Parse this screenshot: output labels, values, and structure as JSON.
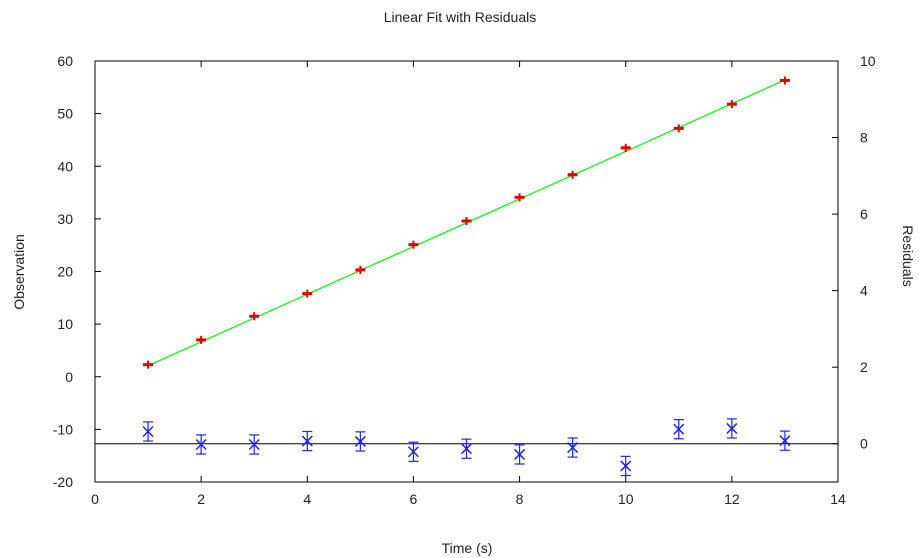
{
  "chart_data": {
    "type": "scatter",
    "title": "Linear Fit with Residuals",
    "xlabel": "Time (s)",
    "ylabel": "Observation",
    "y2label": "Residuals",
    "xlim": [
      0,
      14
    ],
    "ylim": [
      -20,
      60
    ],
    "y2lim": [
      -1,
      10
    ],
    "x_ticks": [
      0,
      2,
      4,
      6,
      8,
      10,
      12,
      14
    ],
    "y_ticks": [
      -20,
      -10,
      0,
      10,
      20,
      30,
      40,
      50,
      60
    ],
    "y2_ticks": [
      0,
      2,
      4,
      6,
      8,
      10
    ],
    "grid": false,
    "x": [
      1,
      2,
      3,
      4,
      5,
      6,
      7,
      8,
      9,
      10,
      11,
      12,
      13
    ],
    "observations": {
      "y": [
        2.3,
        7.0,
        11.5,
        15.8,
        20.3,
        25.1,
        29.6,
        34.1,
        38.4,
        43.5,
        47.2,
        51.8,
        56.3
      ],
      "color": "#e00000"
    },
    "fit_line": {
      "x": [
        1,
        13
      ],
      "y": [
        2.1,
        56.4
      ],
      "color": "#33ee33"
    },
    "residuals": {
      "values": [
        0.32,
        -0.02,
        -0.02,
        0.07,
        0.06,
        -0.21,
        -0.13,
        -0.28,
        -0.1,
        -0.58,
        0.38,
        0.4,
        0.08
      ],
      "errors": [
        0.25,
        0.25,
        0.25,
        0.25,
        0.25,
        0.25,
        0.25,
        0.25,
        0.25,
        0.25,
        0.25,
        0.25,
        0.25
      ],
      "color": "#2222ee",
      "baseline": 0
    }
  }
}
